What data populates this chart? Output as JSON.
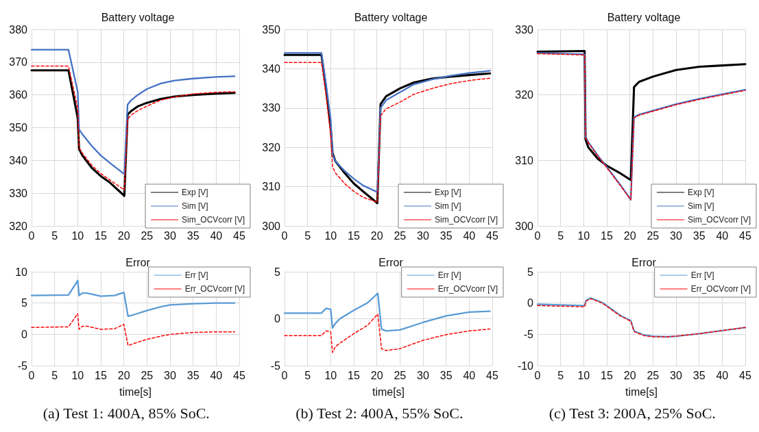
{
  "chart_data": [
    {
      "type": "line",
      "title": "Battery voltage",
      "x": [
        0,
        8,
        10,
        10.3,
        11,
        13,
        15,
        17,
        20.1,
        20.8,
        21.5,
        23,
        25,
        28,
        31,
        35,
        40,
        44
      ],
      "series": [
        {
          "name": "Exp [V]",
          "color": "#000000",
          "line_style": "solid",
          "values": [
            367.5,
            367.5,
            353,
            343.5,
            341.5,
            337.8,
            335.2,
            333.2,
            329.2,
            354,
            355,
            356.5,
            357.6,
            358.8,
            359.5,
            360,
            360.4,
            360.6
          ]
        },
        {
          "name": "Sim [V]",
          "color": "#4472c4",
          "line_style": "solid",
          "values": [
            373.8,
            373.8,
            361,
            349.5,
            348,
            344.5,
            341.5,
            339.2,
            335.8,
            357,
            358.3,
            360,
            361.8,
            363.5,
            364.4,
            365,
            365.5,
            365.7
          ]
        },
        {
          "name": "Sim_OCVcorr [V]",
          "color": "#ff0000",
          "line_style": "dashed",
          "values": [
            368.8,
            368.8,
            356,
            344,
            342.2,
            338.6,
            336,
            334,
            331,
            352.5,
            353.8,
            355.2,
            356.6,
            358.4,
            359.4,
            360.3,
            360.8,
            361
          ]
        }
      ],
      "xlim": [
        0,
        45
      ],
      "xticks": [
        0,
        5,
        10,
        15,
        20,
        25,
        30,
        35,
        40,
        45
      ],
      "ylim": [
        320,
        380
      ],
      "yticks": [
        320,
        330,
        340,
        350,
        360,
        370,
        380
      ],
      "grid": true,
      "legend": "bottom right",
      "marker": "none"
    },
    {
      "type": "line",
      "title": "Battery voltage",
      "x": [
        0,
        8,
        9,
        10,
        10.4,
        11,
        13,
        15,
        17,
        20.1,
        20.8,
        22,
        25,
        28,
        32,
        36,
        40,
        44.5
      ],
      "series": [
        {
          "name": "Exp [V]",
          "color": "#000000",
          "line_style": "solid",
          "values": [
            343.5,
            343.5,
            335,
            325,
            318.5,
            316.5,
            313.5,
            310.8,
            308.8,
            305.8,
            331,
            333,
            335,
            336.5,
            337.5,
            338,
            338.4,
            338.8
          ]
        },
        {
          "name": "Sim [V]",
          "color": "#4472c4",
          "line_style": "solid",
          "values": [
            344,
            344,
            336,
            327,
            318,
            316.5,
            314,
            312,
            310.3,
            308.6,
            330,
            332,
            334,
            336,
            337.3,
            338.2,
            338.9,
            339.5
          ]
        },
        {
          "name": "Sim_OCVcorr [V]",
          "color": "#ff0000",
          "line_style": "dashed",
          "values": [
            341.6,
            341.6,
            333,
            323,
            315,
            313.5,
            310.8,
            308.8,
            307.3,
            306,
            328,
            329.8,
            331.5,
            333.5,
            335,
            336.2,
            337,
            337.6
          ]
        }
      ],
      "xlim": [
        0,
        45
      ],
      "xticks": [
        0,
        5,
        10,
        15,
        20,
        25,
        30,
        35,
        40,
        45
      ],
      "ylim": [
        300,
        350
      ],
      "yticks": [
        300,
        310,
        320,
        330,
        340,
        350
      ],
      "grid": true,
      "legend": "bottom right",
      "marker": "none"
    },
    {
      "type": "line",
      "title": "Battery voltage",
      "x": [
        0,
        10.2,
        10.4,
        11,
        13,
        15,
        18,
        20.2,
        20.9,
        22,
        25,
        30,
        35,
        40,
        45
      ],
      "series": [
        {
          "name": "Exp [V]",
          "color": "#000000",
          "line_style": "solid",
          "values": [
            326.6,
            326.7,
            313.2,
            312,
            310.3,
            309.2,
            308,
            307,
            321.2,
            322,
            322.8,
            323.8,
            324.3,
            324.5,
            324.7
          ]
        },
        {
          "name": "Sim [V]",
          "color": "#4472c4",
          "line_style": "solid",
          "values": [
            326.4,
            326.2,
            313.6,
            312.8,
            310.8,
            309,
            306.2,
            304,
            316.6,
            317,
            317.6,
            318.6,
            319.4,
            320.1,
            320.8
          ]
        },
        {
          "name": "Sim_OCVcorr [V]",
          "color": "#ff0000",
          "line_style": "dashed",
          "values": [
            326.3,
            326.1,
            313.5,
            312.7,
            310.7,
            308.9,
            306.1,
            304,
            316.5,
            316.9,
            317.5,
            318.5,
            319.3,
            320,
            320.7
          ]
        }
      ],
      "xlim": [
        0,
        45
      ],
      "xticks": [
        0,
        5,
        10,
        15,
        20,
        25,
        30,
        35,
        40,
        45
      ],
      "ylim": [
        300,
        330
      ],
      "yticks": [
        300,
        310,
        320,
        330
      ],
      "grid": true,
      "legend": "bottom right",
      "marker": "none"
    },
    {
      "type": "line",
      "title": "Error",
      "xlabel": "time[s]",
      "annotations": [
        "(a) Test 1: 400A, 85% SoC."
      ],
      "x": [
        0,
        8,
        10,
        10.3,
        11,
        12,
        15,
        18,
        20,
        20.9,
        22,
        25,
        28,
        30,
        35,
        40,
        44
      ],
      "series": [
        {
          "name": "Err [V]",
          "color": "#5b9bd5",
          "line_style": "solid",
          "values": [
            6.2,
            6.3,
            8.6,
            6.2,
            6.6,
            6.6,
            6.1,
            6.2,
            6.7,
            2.9,
            3.1,
            3.8,
            4.4,
            4.7,
            4.9,
            5,
            5
          ]
        },
        {
          "name": "Err_OCVcorr [V]",
          "color": "#ff0000",
          "line_style": "dashed",
          "values": [
            1.1,
            1.2,
            3.3,
            0.8,
            1.3,
            1.3,
            0.8,
            0.9,
            1.6,
            -1.8,
            -1.5,
            -0.8,
            -0.3,
            0,
            0.3,
            0.4,
            0.4
          ]
        }
      ],
      "xlim": [
        0,
        45
      ],
      "xticks": [
        0,
        5,
        10,
        15,
        20,
        25,
        30,
        35,
        40,
        45
      ],
      "ylim": [
        -5,
        10
      ],
      "yticks": [
        -5,
        0,
        5,
        10
      ],
      "grid": true,
      "legend": "top right",
      "marker": "none"
    },
    {
      "type": "line",
      "title": "Error",
      "xlabel": "time[s]",
      "annotations": [
        "(b) Test 2: 400A, 55% SoC."
      ],
      "x": [
        0,
        8,
        9,
        10,
        10.4,
        11,
        12,
        15,
        18,
        20.2,
        21,
        22,
        25,
        30,
        35,
        40,
        44.5
      ],
      "series": [
        {
          "name": "Err [V]",
          "color": "#5b9bd5",
          "line_style": "solid",
          "values": [
            0.6,
            0.6,
            1.1,
            1,
            -1,
            -0.5,
            0,
            0.9,
            1.7,
            2.7,
            -1.1,
            -1.3,
            -1.2,
            -0.4,
            0.3,
            0.7,
            0.8
          ]
        },
        {
          "name": "Err_OCVcorr [V]",
          "color": "#ff0000",
          "line_style": "dashed",
          "values": [
            -1.8,
            -1.8,
            -1.3,
            -1.4,
            -3.6,
            -3,
            -2.6,
            -1.6,
            -0.7,
            0.5,
            -3.2,
            -3.4,
            -3.2,
            -2.3,
            -1.7,
            -1.3,
            -1.1
          ]
        }
      ],
      "xlim": [
        0,
        45
      ],
      "xticks": [
        0,
        5,
        10,
        15,
        20,
        25,
        30,
        35,
        40,
        45
      ],
      "ylim": [
        -5,
        5
      ],
      "yticks": [
        -5,
        0,
        5
      ],
      "grid": true,
      "legend": "top right",
      "marker": "none"
    },
    {
      "type": "line",
      "title": "Error",
      "xlabel": "time[s]",
      "annotations": [
        "(c) Test 3: 200A, 25% SoC."
      ],
      "x": [
        0,
        10.2,
        10.5,
        11.5,
        14,
        18,
        20.2,
        20.8,
        21,
        23,
        25,
        28,
        30,
        35,
        40,
        45
      ],
      "series": [
        {
          "name": "Err [V]",
          "color": "#5b9bd5",
          "line_style": "solid",
          "values": [
            -0.2,
            -0.4,
            0.4,
            0.8,
            0.1,
            -2,
            -2.8,
            -4.2,
            -4.5,
            -5.1,
            -5.3,
            -5.4,
            -5.3,
            -4.9,
            -4.4,
            -3.9
          ]
        },
        {
          "name": "Err_OCVcorr [V]",
          "color": "#ff0000",
          "line_style": "dashed",
          "values": [
            -0.4,
            -0.6,
            0.3,
            0.7,
            0,
            -2.1,
            -2.9,
            -4.3,
            -4.6,
            -5.2,
            -5.4,
            -5.4,
            -5.3,
            -4.9,
            -4.4,
            -3.9
          ]
        }
      ],
      "xlim": [
        0,
        45
      ],
      "xticks": [
        0,
        5,
        10,
        15,
        20,
        25,
        30,
        35,
        40,
        45
      ],
      "ylim": [
        -10,
        5
      ],
      "yticks": [
        -10,
        -5,
        0,
        5
      ],
      "grid": true,
      "legend": "top right",
      "marker": "none"
    }
  ]
}
